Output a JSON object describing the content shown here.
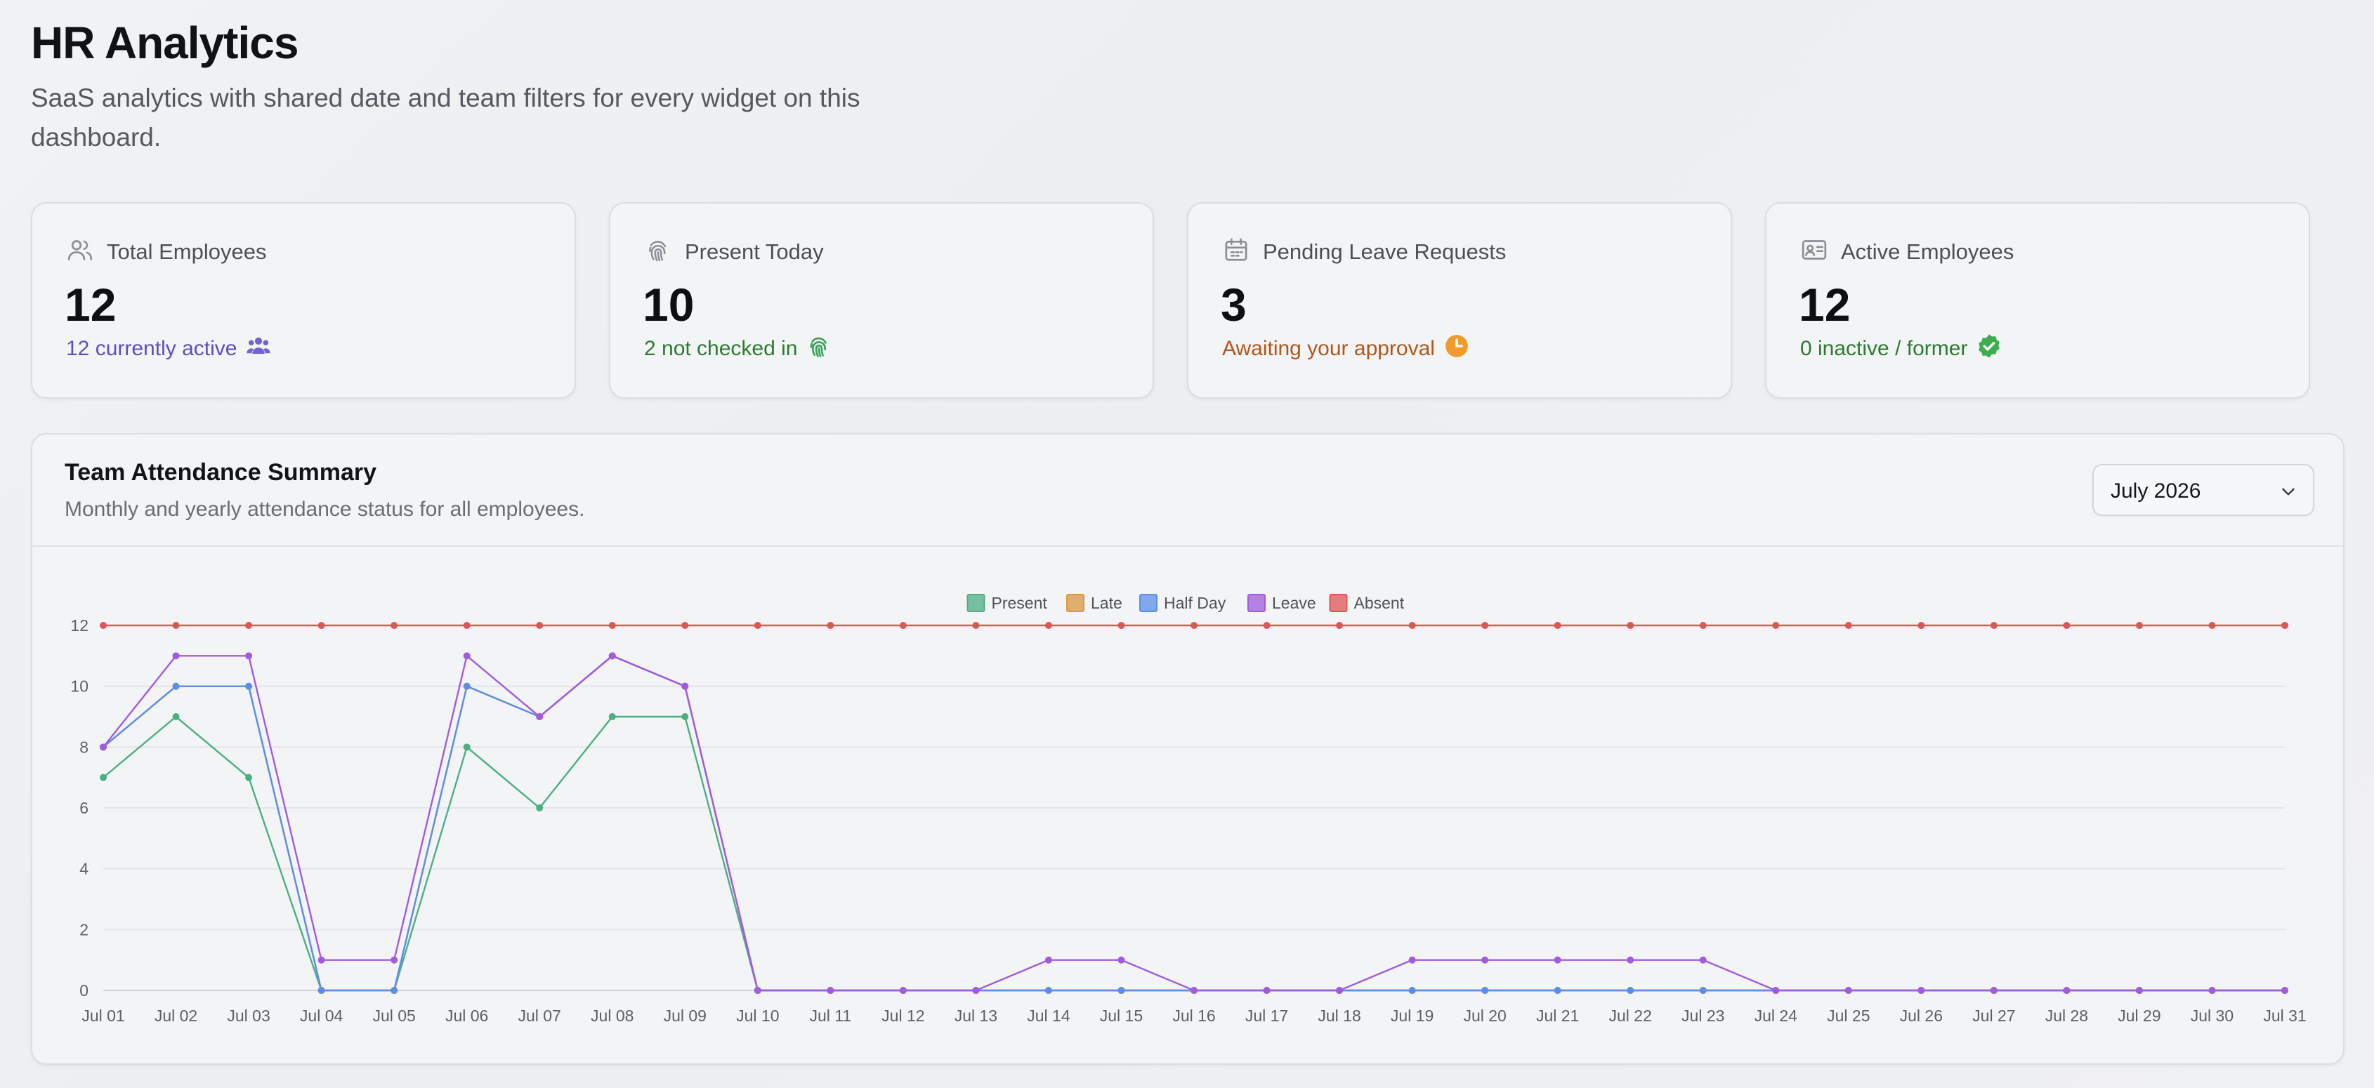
{
  "header": {
    "title": "HR Analytics",
    "subtitle": "SaaS analytics with shared date and team filters for every widget on this dashboard."
  },
  "stats": [
    {
      "label": "Total Employees",
      "value": "12",
      "sub": "12 currently active",
      "sub_color": "#5b4fbf",
      "icon": "users-icon",
      "sub_icon": "group-icon"
    },
    {
      "label": "Present Today",
      "value": "10",
      "sub": "2 not checked in",
      "sub_color": "#2c7a31",
      "icon": "fingerprint-icon",
      "sub_icon": "fingerprint-icon"
    },
    {
      "label": "Pending Leave Requests",
      "value": "3",
      "sub": "Awaiting your approval",
      "sub_color": "#b3561a",
      "icon": "calendar-icon",
      "sub_icon": "clock-icon"
    },
    {
      "label": "Active Employees",
      "value": "12",
      "sub": "0 inactive / former",
      "sub_color": "#2c7a31",
      "icon": "id-card-icon",
      "sub_icon": "check-circle-icon"
    }
  ],
  "panel": {
    "title": "Team Attendance Summary",
    "description": "Monthly and yearly attendance status for all employees.",
    "month_select": {
      "value": "July 2026"
    }
  },
  "chart_data": {
    "type": "line",
    "x": [
      "Jul 01",
      "Jul 02",
      "Jul 03",
      "Jul 04",
      "Jul 05",
      "Jul 06",
      "Jul 07",
      "Jul 08",
      "Jul 09",
      "Jul 10",
      "Jul 11",
      "Jul 12",
      "Jul 13",
      "Jul 14",
      "Jul 15",
      "Jul 16",
      "Jul 17",
      "Jul 18",
      "Jul 19",
      "Jul 20",
      "Jul 21",
      "Jul 22",
      "Jul 23",
      "Jul 24",
      "Jul 25",
      "Jul 26",
      "Jul 27",
      "Jul 28",
      "Jul 29",
      "Jul 30",
      "Jul 31"
    ],
    "ylim": [
      0,
      12
    ],
    "yticks": [
      0,
      2,
      4,
      6,
      8,
      10,
      12
    ],
    "legend_position": "top-center",
    "grid": true,
    "series": [
      {
        "name": "Present",
        "color": "#4caf82",
        "values": [
          7,
          9,
          7,
          0,
          0,
          8,
          6,
          9,
          9,
          0,
          0,
          0,
          0,
          0,
          0,
          0,
          0,
          0,
          0,
          0,
          0,
          0,
          0,
          0,
          0,
          0,
          0,
          0,
          0,
          0,
          0
        ]
      },
      {
        "name": "Late",
        "color": "#d99a3c",
        "values": [
          8,
          10,
          10,
          0,
          0,
          10,
          9,
          11,
          10,
          0,
          0,
          0,
          0,
          0,
          0,
          0,
          0,
          0,
          0,
          0,
          0,
          0,
          0,
          0,
          0,
          0,
          0,
          0,
          0,
          0,
          0
        ]
      },
      {
        "name": "Half Day",
        "color": "#5b8fe6",
        "values": [
          8,
          10,
          10,
          0,
          0,
          10,
          9,
          11,
          10,
          0,
          0,
          0,
          0,
          0,
          0,
          0,
          0,
          0,
          0,
          0,
          0,
          0,
          0,
          0,
          0,
          0,
          0,
          0,
          0,
          0,
          0
        ]
      },
      {
        "name": "Leave",
        "color": "#a25be0",
        "values": [
          8,
          11,
          11,
          1,
          1,
          11,
          9,
          11,
          10,
          0,
          0,
          0,
          0,
          1,
          1,
          0,
          0,
          0,
          1,
          1,
          1,
          1,
          1,
          0,
          0,
          0,
          0,
          0,
          0,
          0,
          0
        ]
      },
      {
        "name": "Absent",
        "color": "#e05555",
        "values": [
          12,
          12,
          12,
          12,
          12,
          12,
          12,
          12,
          12,
          12,
          12,
          12,
          12,
          12,
          12,
          12,
          12,
          12,
          12,
          12,
          12,
          12,
          12,
          12,
          12,
          12,
          12,
          12,
          12,
          12,
          12
        ]
      }
    ]
  }
}
